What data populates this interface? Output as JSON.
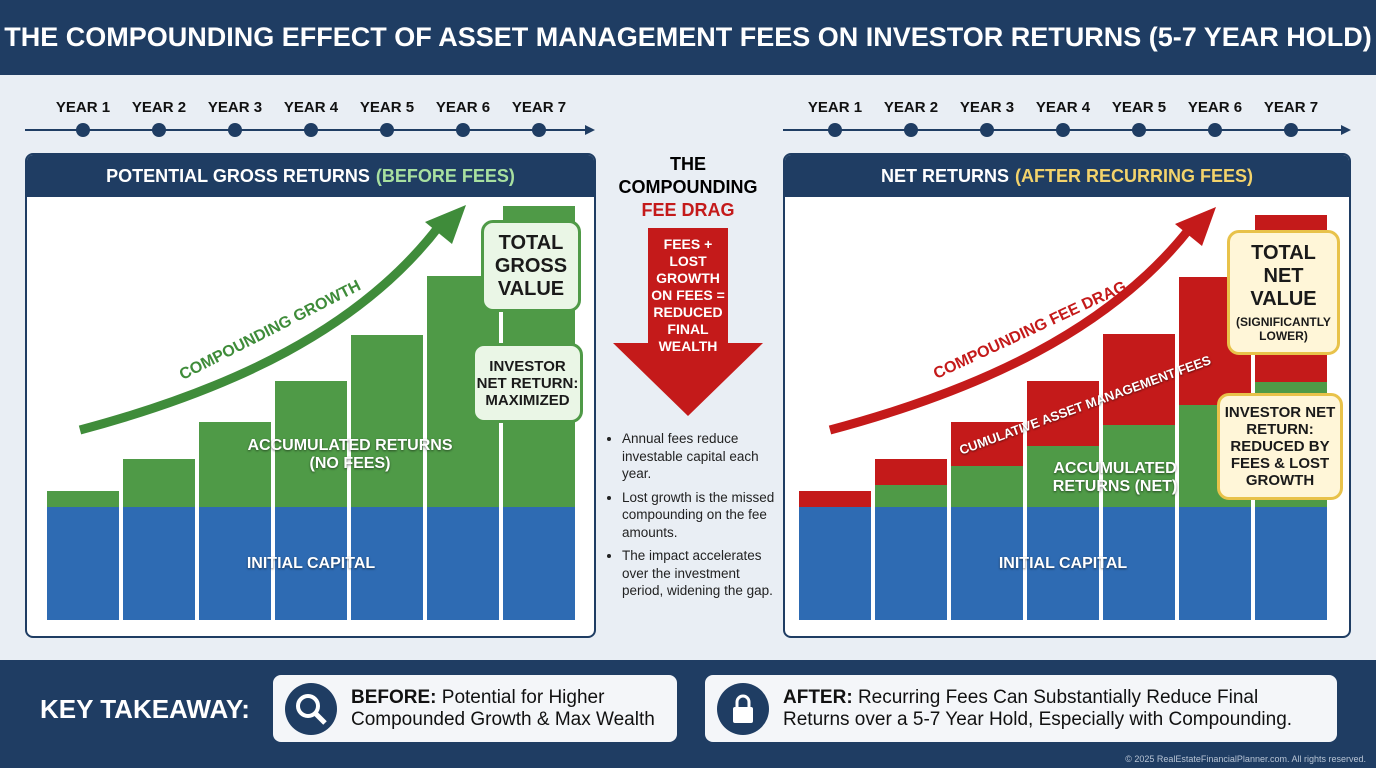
{
  "title": "THE COMPOUNDING EFFECT OF ASSET MANAGEMENT FEES ON INVESTOR RETURNS (5-7 YEAR HOLD)",
  "chart_data": [
    {
      "type": "bar",
      "stacked": true,
      "title": "POTENTIAL GROSS RETURNS",
      "title_highlight": "(BEFORE FEES)",
      "categories": [
        "YEAR 1",
        "YEAR 2",
        "YEAR 3",
        "YEAR 4",
        "YEAR 5",
        "YEAR 6",
        "YEAR 7"
      ],
      "series": [
        {
          "name": "INITIAL CAPITAL",
          "color": "#2e6bb3",
          "values": [
            100,
            100,
            100,
            100,
            100,
            100,
            100
          ]
        },
        {
          "name": "ACCUMULATED RETURNS (NO FEES)",
          "color": "#4f9a47",
          "values": [
            14,
            42,
            75,
            111,
            152,
            204,
            266
          ]
        }
      ],
      "annotations": {
        "arrow": "COMPOUNDING GROWTH",
        "callout": "TOTAL GROSS VALUE",
        "note": "INVESTOR NET RETURN: MAXIMIZED"
      }
    },
    {
      "type": "bar",
      "stacked": true,
      "title": "NET RETURNS",
      "title_highlight": "(AFTER RECURRING FEES)",
      "categories": [
        "YEAR 1",
        "YEAR 2",
        "YEAR 3",
        "YEAR 4",
        "YEAR 5",
        "YEAR 6",
        "YEAR 7"
      ],
      "series": [
        {
          "name": "INITIAL CAPITAL",
          "color": "#2e6bb3",
          "values": [
            100,
            100,
            100,
            100,
            100,
            100,
            100
          ]
        },
        {
          "name": "ACCUMULATED RETURNS (NET)",
          "color": "#4f9a47",
          "values": [
            0,
            19,
            36,
            54,
            72,
            90,
            110
          ]
        },
        {
          "name": "CUMULATIVE ASSET MANAGEMENT FEES",
          "color": "#c41a1a",
          "values": [
            14,
            23,
            39,
            57,
            81,
            113,
            148
          ]
        }
      ],
      "annotations": {
        "arrow": "COMPOUNDING FEE DRAG",
        "callout": "TOTAL NET VALUE",
        "callout_sub": "(SIGNIFICANTLY LOWER)",
        "note": "INVESTOR NET RETURN: REDUCED BY FEES & LOST GROWTH"
      }
    }
  ],
  "center": {
    "heading": "THE COMPOUNDING",
    "heading_red": "FEE DRAG",
    "arrow_text": "FEES + LOST GROWTH ON FEES = REDUCED FINAL WEALTH",
    "bullets": [
      "Annual fees reduce investable capital each year.",
      "Lost growth is the missed compounding on the fee amounts.",
      "The impact accelerates over the investment period, widening the gap."
    ]
  },
  "takeaway": {
    "label": "KEY TAKEAWAY:",
    "before": {
      "lead": "BEFORE:",
      "text": "Potential for Higher Compounded Growth & Max Wealth"
    },
    "after": {
      "lead": "AFTER:",
      "text": "Recurring Fees Can Substantially Reduce Final Returns over a 5-7 Year Hold, Especially with Compounding."
    }
  },
  "footer": "© 2025 RealEstateFinancialPlanner.com. All rights reserved."
}
